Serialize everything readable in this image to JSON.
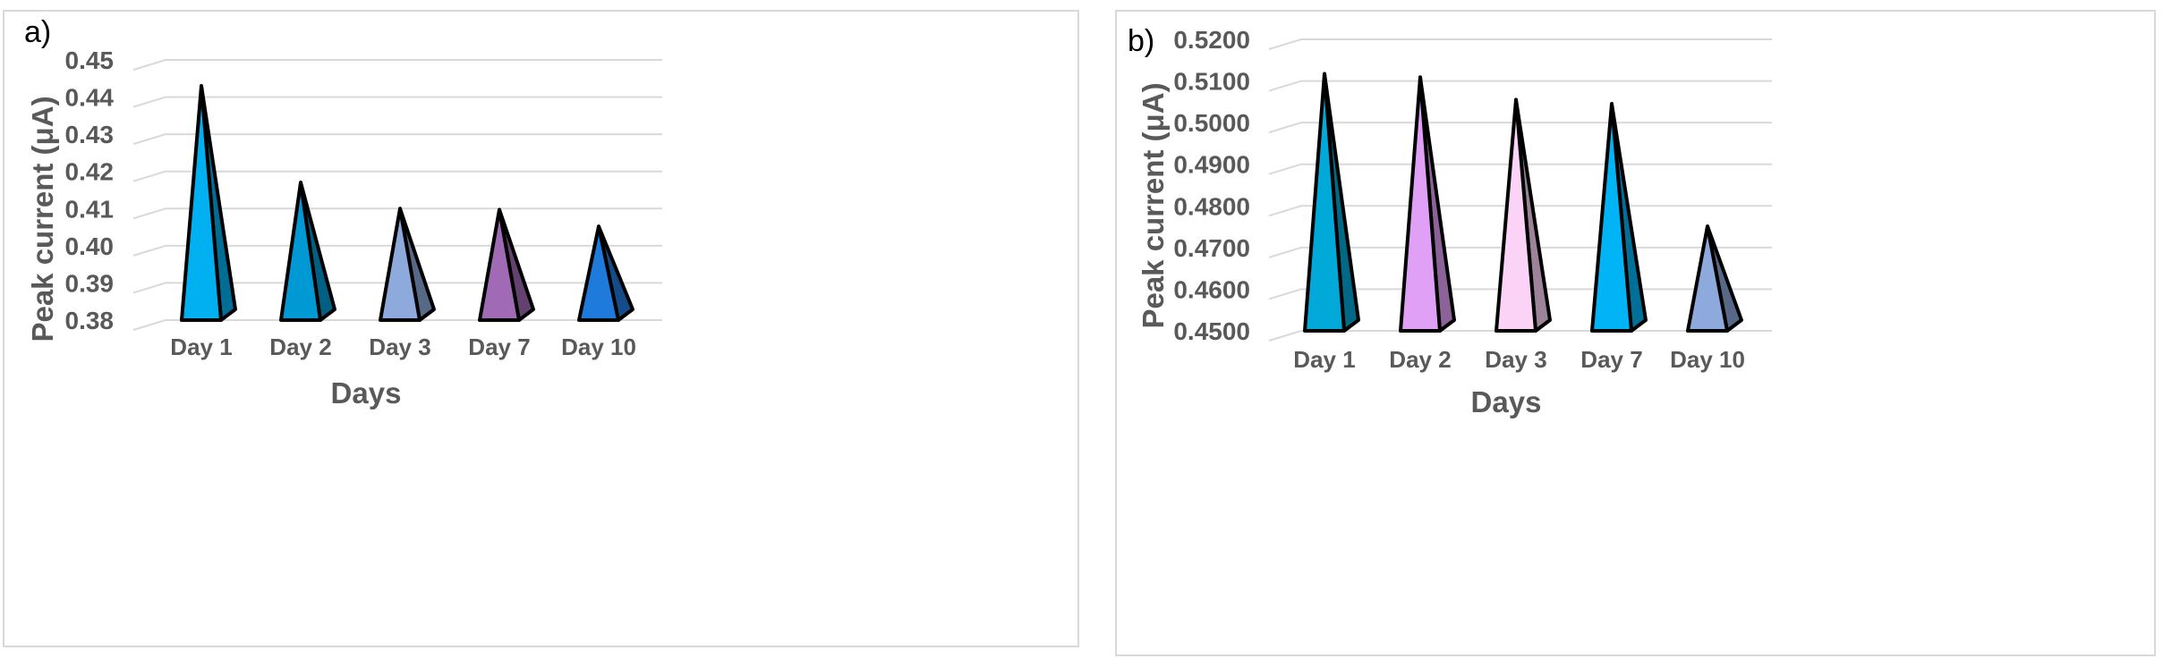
{
  "chart_data": [
    {
      "type": "bar",
      "shape": "pyramid-3d",
      "panel_label": "a)",
      "categories": [
        "Day 1",
        "Day 2",
        "Day 3",
        "Day 7",
        "Day 10"
      ],
      "values": [
        0.443,
        0.417,
        0.41,
        0.4097,
        0.4052
      ],
      "colors": [
        "#00B0F0",
        "#0099D4",
        "#8EA9DB",
        "#A16AB5",
        "#1E7BDB"
      ],
      "xlabel": "Days",
      "ylabel": "Peak current (μA)",
      "ylim": [
        0.38,
        0.45
      ],
      "yticks": [
        "0.38",
        "0.39",
        "0.40",
        "0.41",
        "0.42",
        "0.43",
        "0.44",
        "0.45"
      ],
      "grid": true,
      "legend": "none"
    },
    {
      "type": "bar",
      "shape": "pyramid-3d",
      "panel_label": "b)",
      "categories": [
        "Day 1",
        "Day 2",
        "Day 3",
        "Day 7",
        "Day 10"
      ],
      "values": [
        0.5117,
        0.5109,
        0.5055,
        0.5045,
        0.4751
      ],
      "colors": [
        "#00A9D8",
        "#E0A0F5",
        "#FBD3F7",
        "#00B4F5",
        "#8EA9DB"
      ],
      "xlabel": "Days",
      "ylabel": "Peak current (μA)",
      "ylim": [
        0.45,
        0.52
      ],
      "yticks": [
        "0.4500",
        "0.4600",
        "0.4700",
        "0.4800",
        "0.4900",
        "0.5000",
        "0.5100",
        "0.5200"
      ],
      "grid": true,
      "legend": "none"
    }
  ]
}
